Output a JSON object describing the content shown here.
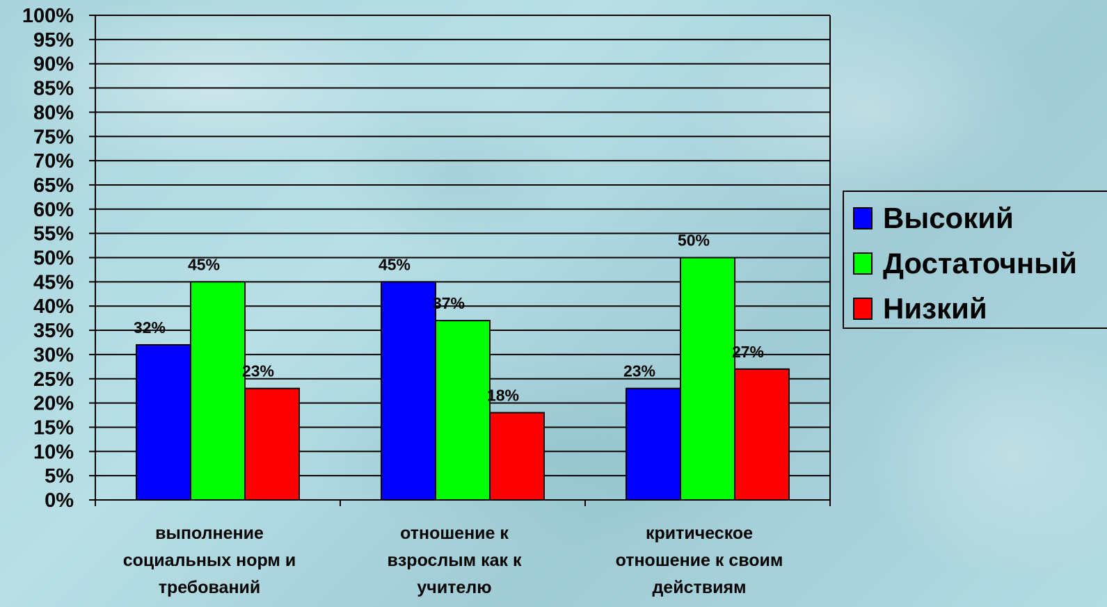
{
  "chart_data": {
    "type": "bar",
    "categories": [
      [
        "выполнение",
        "социальных норм  и",
        "требований"
      ],
      [
        "отношение к",
        "взрослым как к",
        "учителю"
      ],
      [
        "критическое",
        "отношение к своим",
        "действиям"
      ]
    ],
    "series": [
      {
        "name": "Высокий",
        "color": "#0000ff",
        "values": [
          32,
          45,
          23
        ],
        "labels": [
          "32%",
          "45%",
          "23%"
        ]
      },
      {
        "name": "Достаточный",
        "color": "#00ff00",
        "values": [
          45,
          37,
          50
        ],
        "labels": [
          "45%",
          "37%",
          "50%"
        ]
      },
      {
        "name": "Низкий",
        "color": "#ff0000",
        "values": [
          23,
          18,
          27
        ],
        "labels": [
          "23%",
          "18%",
          "27%"
        ]
      }
    ],
    "ylim": [
      0,
      100
    ],
    "ytick_step": 5,
    "ytick_labels": [
      "0%",
      "5%",
      "10%",
      "15%",
      "20%",
      "25%",
      "30%",
      "35%",
      "40%",
      "45%",
      "50%",
      "55%",
      "60%",
      "65%",
      "70%",
      "75%",
      "80%",
      "85%",
      "90%",
      "95%",
      "100%"
    ],
    "grid": true,
    "legend_position": "right",
    "title": "",
    "xlabel": "",
    "ylabel": ""
  }
}
